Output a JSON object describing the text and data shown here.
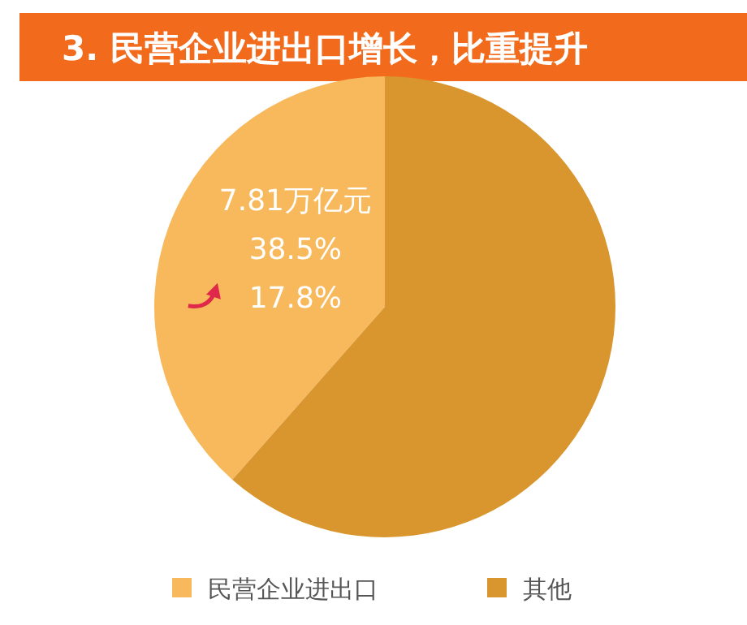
{
  "chart_data": {
    "type": "pie",
    "title": "3. 民营企业进出口增长，比重提升",
    "categories": [
      "民营企业进出口",
      "其他"
    ],
    "values": [
      38.5,
      61.5
    ],
    "colors": [
      "#f7b95b",
      "#d9962e"
    ],
    "value_labels": [
      "38.5%",
      null
    ],
    "annotations": [
      "7.81万亿元",
      "17.8%"
    ],
    "legend": "bottom"
  }
}
